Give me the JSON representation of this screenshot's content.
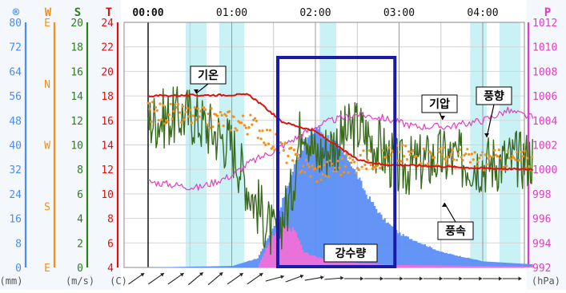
{
  "chart_data": {
    "type": "line",
    "title": "",
    "time_labels": [
      "00:00",
      "01:00",
      "02:00",
      "03:00",
      "04:00"
    ],
    "axes": {
      "rain": {
        "symbol": "®",
        "unit": "(mm)",
        "ticks": [
          "80",
          "72",
          "64",
          "56",
          "48",
          "40",
          "32",
          "24",
          "16",
          "8",
          "0"
        ],
        "color": "#4a8df0"
      },
      "wind_dir": {
        "symbol": "W",
        "unit": "",
        "ticks": [
          "E",
          "N",
          "W",
          "S",
          "E"
        ],
        "color": "#f0901e"
      },
      "wind_spd": {
        "symbol": "S",
        "unit": "(m/s)",
        "ticks": [
          "20",
          "18",
          "16",
          "14",
          "12",
          "10",
          "8",
          "6",
          "4",
          "2",
          "0"
        ],
        "color": "#2e7d1e"
      },
      "temp": {
        "symbol": "T",
        "unit": "(C)",
        "ticks": [
          "24",
          "22",
          "20",
          "18",
          "16",
          "14",
          "12",
          "10",
          "8",
          "6",
          "4"
        ],
        "color": "#e01010"
      },
      "pressure": {
        "symbol": "P",
        "unit": "(hPa)",
        "ticks": [
          "1012",
          "1010",
          "1008",
          "1006",
          "1004",
          "1002",
          "1000",
          "998",
          "996",
          "994",
          "992"
        ],
        "color": "#e040c0"
      }
    },
    "series": [
      {
        "name": "기온",
        "axis": "temp",
        "color": "#e01010",
        "x": [
          0,
          1.2,
          1.3,
          1.6,
          2.0,
          2.5,
          2.8,
          3.3,
          4.0,
          4.6
        ],
        "y": [
          18.0,
          18.1,
          17.6,
          15.9,
          15.1,
          12.8,
          12.4,
          12.3,
          12.1,
          12.0
        ]
      },
      {
        "name": "기압",
        "axis": "pressure",
        "color": "#e040c0",
        "x": [
          0,
          0.6,
          1.0,
          1.2,
          1.5,
          1.75,
          2.0,
          2.2,
          2.5,
          2.8,
          3.2,
          3.6,
          4.0,
          4.3,
          4.6
        ],
        "y": [
          999.0,
          998.5,
          999.5,
          1000.5,
          1001.5,
          1002.5,
          1003.5,
          1004.0,
          1004.5,
          1004.2,
          1003.5,
          1003.5,
          1004.0,
          1004.8,
          1004.2
        ]
      },
      {
        "name": "풍속",
        "axis": "wind_spd",
        "color": "#3a6a1e",
        "x": [
          0,
          0.5,
          1.0,
          1.2,
          1.5,
          1.7,
          1.85,
          2.0,
          2.2,
          2.5,
          2.8,
          3.0,
          3.5,
          4.0,
          4.6
        ],
        "y": [
          12.0,
          12.5,
          10.0,
          6.5,
          2.5,
          5.5,
          12.5,
          9.0,
          10.0,
          11.5,
          9.5,
          8.0,
          9.0,
          8.5,
          9.0
        ]
      },
      {
        "name": "풍향",
        "axis": "wind_dir",
        "color": "#f0901e",
        "x": [
          0,
          0.6,
          1.0,
          1.3,
          1.5,
          1.75,
          2.0,
          2.3,
          2.6,
          3.0,
          3.5,
          4.0,
          4.6
        ],
        "y": [
          2.55,
          2.45,
          2.4,
          2.3,
          2.05,
          1.75,
          1.55,
          1.65,
          1.75,
          1.85,
          1.8,
          1.75,
          1.75
        ]
      },
      {
        "name": "강수량",
        "axis": "rain",
        "color": "#5b8ef5",
        "x": [
          0,
          1.0,
          1.3,
          1.5,
          1.8,
          2.0,
          2.2,
          2.4,
          2.6,
          2.8,
          3.0,
          3.5,
          4.0,
          4.6
        ],
        "y": [
          0,
          0.5,
          3.0,
          14.0,
          38.0,
          46.0,
          41.0,
          35.0,
          24.0,
          16.0,
          11.0,
          5.0,
          2.0,
          1.0
        ]
      },
      {
        "name": "강수량 (1hr)",
        "axis": "rain",
        "color": "#f070d8",
        "x": [
          0,
          1.3,
          1.45,
          1.6,
          1.75,
          1.85,
          2.0,
          2.2,
          2.5,
          3.0,
          4.6
        ],
        "y": [
          0,
          0,
          9.0,
          14.0,
          12.0,
          5.0,
          3.5,
          2.5,
          1.5,
          0.8,
          0.3
        ]
      }
    ],
    "labels": [
      "기온",
      "기압",
      "풍향",
      "풍속",
      "강수량"
    ],
    "wind_arrows": "bottom",
    "grid": true,
    "highlight_box": {
      "x_range": [
        1.55,
        2.95
      ]
    },
    "rain_bands": [
      [
        0.45,
        0.7
      ],
      [
        0.85,
        1.15
      ],
      [
        2.05,
        2.25
      ],
      [
        3.85,
        4.05
      ],
      [
        4.2,
        4.45
      ]
    ],
    "x_range": [
      0,
      4.6
    ]
  }
}
